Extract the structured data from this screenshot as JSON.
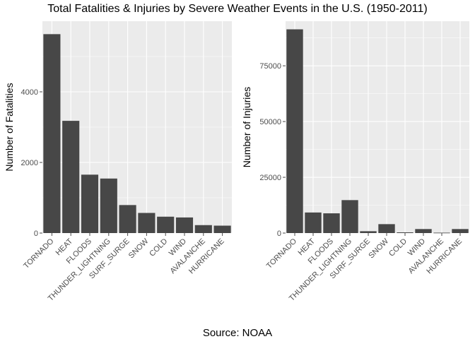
{
  "title": "Total Fatalities & Injuries by Severe Weather Events in the U.S. (1950-2011)",
  "caption": "Source: NOAA",
  "chart_data": [
    {
      "type": "bar",
      "ylabel": "Number of Fatalities",
      "categories": [
        "TORNADO",
        "HEAT",
        "FLOODS",
        "THUNDER_LIGHTNING",
        "SURF_SURGE",
        "SNOW",
        "COLD",
        "WIND",
        "AVALANCHE",
        "HURRICANE"
      ],
      "values": [
        5633,
        3178,
        1654,
        1544,
        793,
        570,
        464,
        442,
        225,
        210
      ],
      "ylim": [
        0,
        6000
      ],
      "yticks": [
        0,
        2000,
        4000
      ],
      "ytick_labels": [
        "0",
        "2000",
        "4000"
      ],
      "grid": true
    },
    {
      "type": "bar",
      "ylabel": "Number of Injuries",
      "categories": [
        "TORNADO",
        "HEAT",
        "FLOODS",
        "THUNDER_LIGHTNING",
        "SURF_SURGE",
        "SNOW",
        "COLD",
        "WIND",
        "AVALANCHE",
        "HURRICANE"
      ],
      "values": [
        91346,
        9224,
        8853,
        14775,
        832,
        4000,
        320,
        1800,
        170,
        1800
      ],
      "ylim": [
        0,
        95000
      ],
      "yticks": [
        0,
        25000,
        50000,
        75000
      ],
      "ytick_labels": [
        "0",
        "25000",
        "50000",
        "75000"
      ],
      "grid": true
    }
  ]
}
